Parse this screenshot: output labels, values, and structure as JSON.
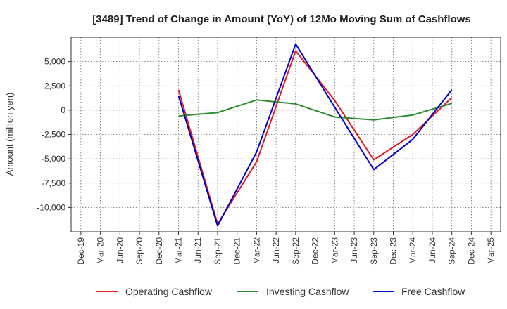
{
  "chart_data": {
    "type": "line",
    "title": "[3489]  Trend of Change in Amount (YoY) of 12Mo Moving Sum of Cashflows",
    "xlabel": "",
    "ylabel": "Amount (million yen)",
    "categories": [
      "Dec-19",
      "Mar-20",
      "Jun-20",
      "Sep-20",
      "Dec-20",
      "Mar-21",
      "Jun-21",
      "Sep-21",
      "Dec-21",
      "Mar-22",
      "Jun-22",
      "Sep-22",
      "Dec-22",
      "Mar-23",
      "Jun-23",
      "Sep-23",
      "Dec-23",
      "Mar-24",
      "Jun-24",
      "Sep-24",
      "Dec-24",
      "Mar-25"
    ],
    "ylim": [
      -12500,
      7500
    ],
    "yticks": [
      5000,
      2500,
      0,
      -2500,
      -5000,
      -7500,
      -10000
    ],
    "ytick_labels": [
      "5,000",
      "2,500",
      "0",
      "-2,500",
      "-5,000",
      "-7,500",
      "-10,000"
    ],
    "grid": true,
    "legend_position": "bottom",
    "series": [
      {
        "name": "Operating Cashflow",
        "color": "#e31a1c",
        "values": [
          null,
          null,
          null,
          null,
          null,
          2100,
          null,
          -11700,
          null,
          -5300,
          null,
          6100,
          null,
          1000,
          null,
          -5100,
          null,
          -2500,
          null,
          1300,
          null,
          null
        ]
      },
      {
        "name": "Investing Cashflow",
        "color": "#2e8b2e",
        "values": [
          null,
          null,
          null,
          null,
          null,
          -600,
          null,
          -250,
          null,
          1050,
          null,
          650,
          null,
          -700,
          null,
          -1000,
          null,
          -500,
          null,
          700,
          null,
          null
        ]
      },
      {
        "name": "Free Cashflow",
        "color": "#0000cd",
        "values": [
          null,
          null,
          null,
          null,
          null,
          1500,
          null,
          -11900,
          null,
          -4300,
          null,
          6800,
          null,
          300,
          null,
          -6100,
          null,
          -3000,
          null,
          2100,
          null,
          null
        ]
      }
    ]
  }
}
